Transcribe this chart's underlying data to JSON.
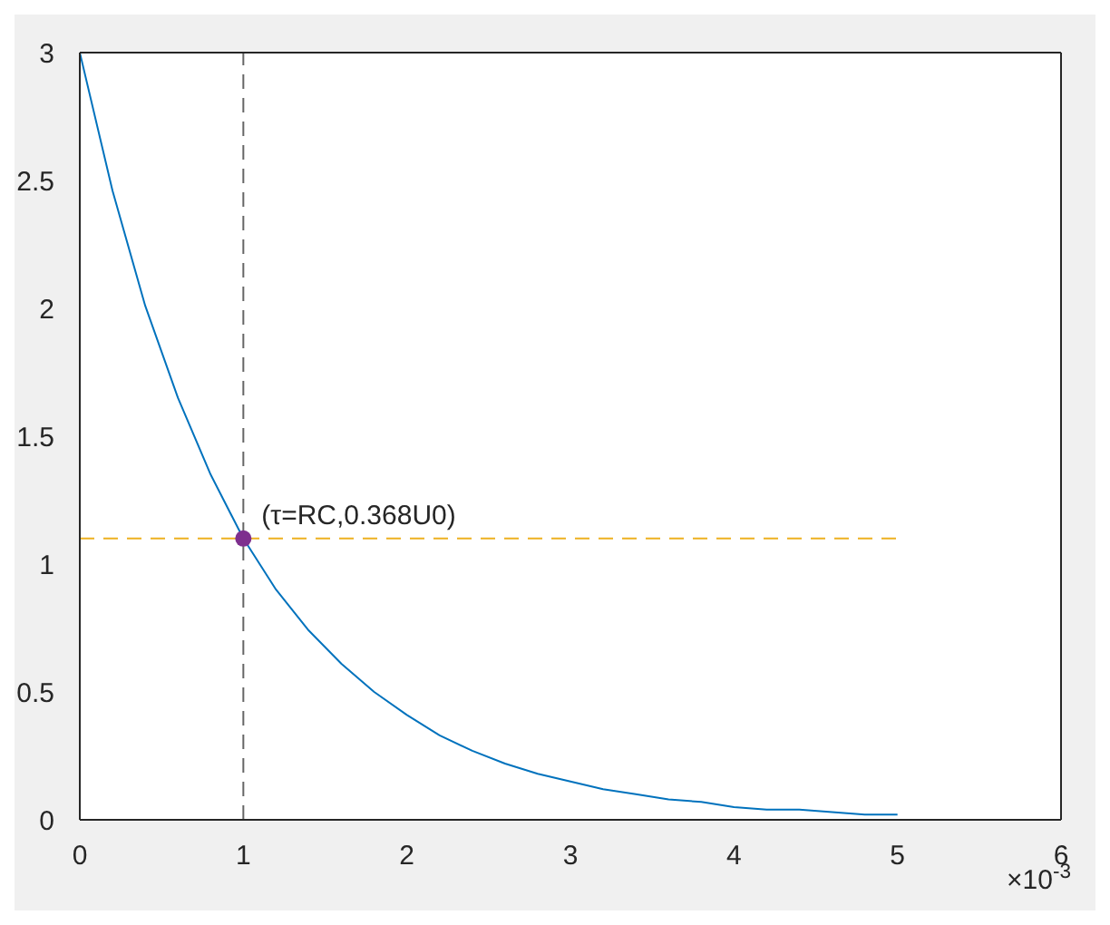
{
  "chart_data": {
    "type": "line",
    "xlabel": "×10$^{-3}$",
    "xlim": [
      0,
      6
    ],
    "xticks": [
      0,
      1,
      2,
      3,
      4,
      5,
      6
    ],
    "ylim": [
      0,
      3
    ],
    "yticks": [
      0,
      0.5,
      1,
      1.5,
      2,
      2.5,
      3
    ],
    "grid": false,
    "legend": false,
    "series": [
      {
        "color": "#0072bd",
        "marker": "none",
        "line_style": "solid",
        "x": [
          0,
          0.2,
          0.4,
          0.6,
          0.8,
          1,
          1.2,
          1.4,
          1.6,
          1.8,
          2,
          2.2,
          2.4,
          2.6,
          2.8,
          3,
          3.2,
          3.4,
          3.6,
          3.8,
          4,
          4.2,
          4.4,
          4.6,
          4.8,
          5
        ],
        "values": [
          3,
          2.46,
          2.01,
          1.65,
          1.35,
          1.1,
          0.9,
          0.74,
          0.61,
          0.5,
          0.41,
          0.33,
          0.27,
          0.22,
          0.18,
          0.15,
          0.12,
          0.1,
          0.08,
          0.07,
          0.05,
          0.04,
          0.04,
          0.03,
          0.02,
          0.02
        ]
      },
      {
        "color": "#edb120",
        "marker": "none",
        "line_style": "dashed",
        "x": [
          0,
          5
        ],
        "values": [
          1.1,
          1.1
        ]
      },
      {
        "type": "scatter",
        "color": "#7e2f8e",
        "marker": "circle",
        "x": [
          1
        ],
        "values": [
          1.1
        ]
      }
    ],
    "ref_lines": [
      {
        "axis": "x",
        "value": 1,
        "color": "#666666",
        "line_style": "dashed"
      }
    ],
    "annotations": [
      {
        "text": "(τ=RC,0.368U0)",
        "x": 1,
        "y": 1.1
      }
    ]
  }
}
